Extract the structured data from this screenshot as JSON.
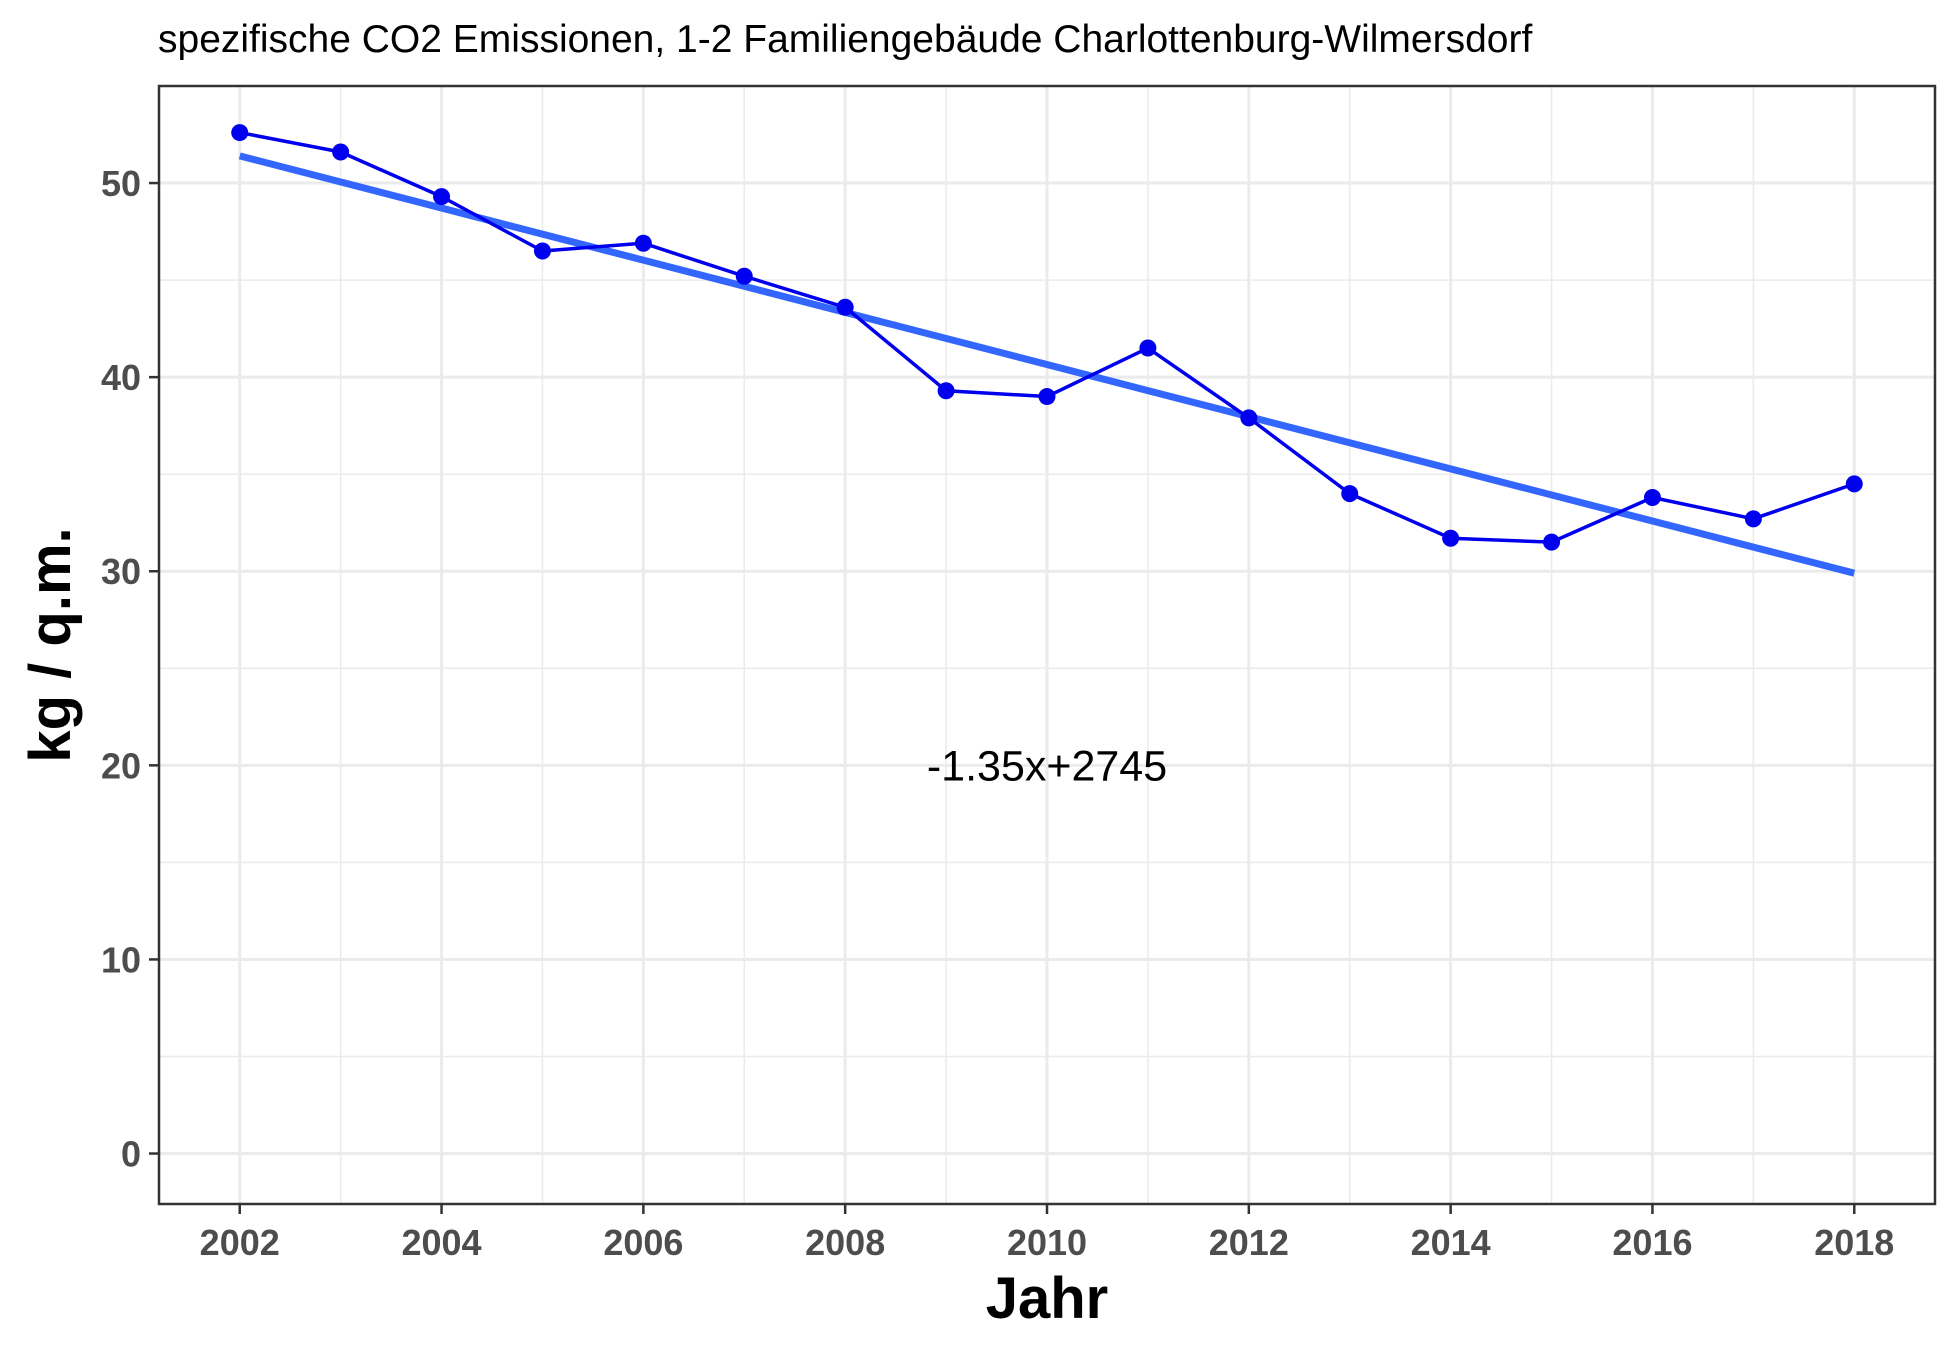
{
  "chart_data": {
    "type": "line",
    "title": "spezifische CO2 Emissionen, 1-2 Familiengebäude Charlottenburg-Wilmersdorf",
    "xlabel": "Jahr",
    "ylabel": "kg / q.m.",
    "xlim": [
      2001.2,
      2018.8
    ],
    "ylim": [
      -2.6,
      55
    ],
    "x_ticks": [
      2002,
      2004,
      2006,
      2008,
      2010,
      2012,
      2014,
      2016,
      2018
    ],
    "y_ticks": [
      0,
      10,
      20,
      30,
      40,
      50
    ],
    "grid": true,
    "series": [
      {
        "color": "#0000ee",
        "x": [
          2002,
          2003,
          2004,
          2005,
          2006,
          2007,
          2008,
          2009,
          2010,
          2011,
          2012,
          2013,
          2014,
          2015,
          2016,
          2017,
          2018
        ],
        "values": [
          52.6,
          51.6,
          49.3,
          46.5,
          46.9,
          45.2,
          43.6,
          39.3,
          39.0,
          41.5,
          37.9,
          34.0,
          31.7,
          31.5,
          33.8,
          32.7,
          34.5
        ]
      }
    ],
    "trend": {
      "color": "#3366ff",
      "x": [
        2002,
        2018
      ],
      "values": [
        51.4,
        29.9
      ]
    },
    "annotation": {
      "text": "-1.35x+2745",
      "x": 2010,
      "y": 20
    }
  }
}
